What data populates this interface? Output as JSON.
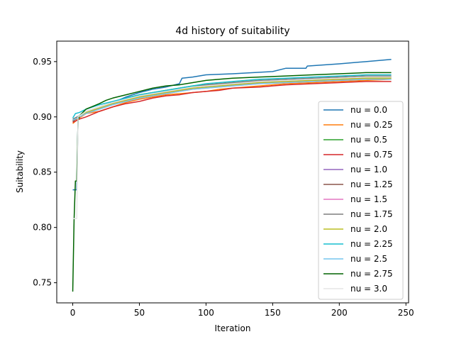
{
  "chart_data": {
    "type": "line",
    "title": "4d history of suitability",
    "xlabel": "Iteration",
    "ylabel": "Suitability",
    "xlim": [
      -12,
      252
    ],
    "ylim": [
      0.7318,
      0.9685
    ],
    "xticks": [
      0,
      50,
      100,
      150,
      200,
      250
    ],
    "yticks": [
      0.75,
      0.8,
      0.85,
      0.9,
      0.95
    ],
    "xtick_labels": [
      "0",
      "50",
      "100",
      "150",
      "200",
      "250"
    ],
    "ytick_labels": [
      "0.75",
      "0.80",
      "0.85",
      "0.90",
      "0.95"
    ],
    "grid": false,
    "legend_position": "right",
    "series": [
      {
        "name": "nu = 0.0",
        "color": "#1f77b4",
        "points": [
          [
            0,
            0.834
          ],
          [
            3,
            0.834
          ],
          [
            4,
            0.899
          ],
          [
            10,
            0.903
          ],
          [
            20,
            0.909
          ],
          [
            30,
            0.913
          ],
          [
            40,
            0.918
          ],
          [
            50,
            0.922
          ],
          [
            60,
            0.925
          ],
          [
            70,
            0.927
          ],
          [
            80,
            0.93
          ],
          [
            82,
            0.935
          ],
          [
            90,
            0.936
          ],
          [
            100,
            0.938
          ],
          [
            120,
            0.939
          ],
          [
            150,
            0.941
          ],
          [
            160,
            0.944
          ],
          [
            175,
            0.944
          ],
          [
            176,
            0.946
          ],
          [
            200,
            0.948
          ],
          [
            220,
            0.95
          ],
          [
            239,
            0.952
          ]
        ]
      },
      {
        "name": "nu = 0.25",
        "color": "#ff7f0e",
        "points": [
          [
            0,
            0.894
          ],
          [
            5,
            0.899
          ],
          [
            10,
            0.903
          ],
          [
            20,
            0.905
          ],
          [
            30,
            0.909
          ],
          [
            40,
            0.913
          ],
          [
            50,
            0.916
          ],
          [
            60,
            0.918
          ],
          [
            70,
            0.92
          ],
          [
            80,
            0.921
          ],
          [
            90,
            0.922
          ],
          [
            100,
            0.923
          ],
          [
            110,
            0.925
          ],
          [
            120,
            0.926
          ],
          [
            140,
            0.928
          ],
          [
            160,
            0.93
          ],
          [
            180,
            0.931
          ],
          [
            200,
            0.932
          ],
          [
            220,
            0.933
          ],
          [
            239,
            0.934
          ]
        ]
      },
      {
        "name": "nu = 0.5",
        "color": "#2ca02c",
        "points": [
          [
            0,
            0.896
          ],
          [
            5,
            0.901
          ],
          [
            10,
            0.905
          ],
          [
            20,
            0.909
          ],
          [
            30,
            0.913
          ],
          [
            40,
            0.917
          ],
          [
            50,
            0.92
          ],
          [
            60,
            0.922
          ],
          [
            70,
            0.924
          ],
          [
            80,
            0.926
          ],
          [
            90,
            0.928
          ],
          [
            100,
            0.929
          ],
          [
            120,
            0.931
          ],
          [
            140,
            0.932
          ],
          [
            160,
            0.933
          ],
          [
            180,
            0.934
          ],
          [
            200,
            0.935
          ],
          [
            220,
            0.935
          ],
          [
            239,
            0.936
          ]
        ]
      },
      {
        "name": "nu = 0.75",
        "color": "#d62728",
        "points": [
          [
            0,
            0.895
          ],
          [
            5,
            0.898
          ],
          [
            10,
            0.9
          ],
          [
            20,
            0.905
          ],
          [
            30,
            0.909
          ],
          [
            40,
            0.912
          ],
          [
            50,
            0.914
          ],
          [
            60,
            0.917
          ],
          [
            70,
            0.919
          ],
          [
            80,
            0.92
          ],
          [
            90,
            0.922
          ],
          [
            100,
            0.923
          ],
          [
            110,
            0.924
          ],
          [
            120,
            0.926
          ],
          [
            140,
            0.927
          ],
          [
            160,
            0.929
          ],
          [
            180,
            0.93
          ],
          [
            200,
            0.931
          ],
          [
            220,
            0.932
          ],
          [
            239,
            0.932
          ]
        ]
      },
      {
        "name": "nu = 1.0",
        "color": "#9467bd",
        "points": [
          [
            0,
            0.897
          ],
          [
            5,
            0.901
          ],
          [
            10,
            0.904
          ],
          [
            20,
            0.908
          ],
          [
            30,
            0.912
          ],
          [
            40,
            0.915
          ],
          [
            50,
            0.918
          ],
          [
            60,
            0.92
          ],
          [
            70,
            0.922
          ],
          [
            80,
            0.924
          ],
          [
            90,
            0.925
          ],
          [
            100,
            0.927
          ],
          [
            120,
            0.929
          ],
          [
            140,
            0.931
          ],
          [
            160,
            0.932
          ],
          [
            180,
            0.933
          ],
          [
            200,
            0.934
          ],
          [
            220,
            0.934
          ],
          [
            239,
            0.935
          ]
        ]
      },
      {
        "name": "nu = 1.25",
        "color": "#8c564b",
        "points": [
          [
            0,
            0.896
          ],
          [
            5,
            0.9
          ],
          [
            10,
            0.904
          ],
          [
            20,
            0.909
          ],
          [
            30,
            0.913
          ],
          [
            40,
            0.916
          ],
          [
            50,
            0.919
          ],
          [
            60,
            0.921
          ],
          [
            70,
            0.923
          ],
          [
            80,
            0.925
          ],
          [
            90,
            0.927
          ],
          [
            100,
            0.928
          ],
          [
            120,
            0.93
          ],
          [
            140,
            0.932
          ],
          [
            160,
            0.933
          ],
          [
            180,
            0.934
          ],
          [
            200,
            0.935
          ],
          [
            220,
            0.936
          ],
          [
            239,
            0.936
          ]
        ]
      },
      {
        "name": "nu = 1.5",
        "color": "#e377c2",
        "points": [
          [
            0,
            0.897
          ],
          [
            5,
            0.9
          ],
          [
            10,
            0.903
          ],
          [
            20,
            0.907
          ],
          [
            30,
            0.911
          ],
          [
            40,
            0.914
          ],
          [
            50,
            0.917
          ],
          [
            60,
            0.919
          ],
          [
            70,
            0.921
          ],
          [
            80,
            0.923
          ],
          [
            90,
            0.925
          ],
          [
            100,
            0.926
          ],
          [
            120,
            0.928
          ],
          [
            140,
            0.93
          ],
          [
            160,
            0.931
          ],
          [
            180,
            0.932
          ],
          [
            200,
            0.933
          ],
          [
            220,
            0.934
          ],
          [
            239,
            0.934
          ]
        ]
      },
      {
        "name": "nu = 1.75",
        "color": "#7f7f7f",
        "points": [
          [
            0,
            0.898
          ],
          [
            5,
            0.901
          ],
          [
            10,
            0.905
          ],
          [
            20,
            0.909
          ],
          [
            30,
            0.913
          ],
          [
            40,
            0.916
          ],
          [
            50,
            0.919
          ],
          [
            60,
            0.921
          ],
          [
            70,
            0.923
          ],
          [
            80,
            0.925
          ],
          [
            90,
            0.927
          ],
          [
            100,
            0.929
          ],
          [
            120,
            0.931
          ],
          [
            140,
            0.933
          ],
          [
            160,
            0.934
          ],
          [
            180,
            0.935
          ],
          [
            200,
            0.936
          ],
          [
            220,
            0.937
          ],
          [
            239,
            0.937
          ]
        ]
      },
      {
        "name": "nu = 2.0",
        "color": "#bcbd22",
        "points": [
          [
            0,
            0.897
          ],
          [
            5,
            0.9
          ],
          [
            10,
            0.904
          ],
          [
            20,
            0.908
          ],
          [
            30,
            0.912
          ],
          [
            40,
            0.915
          ],
          [
            50,
            0.918
          ],
          [
            60,
            0.92
          ],
          [
            70,
            0.922
          ],
          [
            80,
            0.924
          ],
          [
            90,
            0.926
          ],
          [
            100,
            0.927
          ],
          [
            120,
            0.929
          ],
          [
            140,
            0.931
          ],
          [
            160,
            0.932
          ],
          [
            180,
            0.933
          ],
          [
            200,
            0.934
          ],
          [
            220,
            0.935
          ],
          [
            239,
            0.935
          ]
        ]
      },
      {
        "name": "nu = 2.25",
        "color": "#17becf",
        "points": [
          [
            0,
            0.899
          ],
          [
            2,
            0.903
          ],
          [
            5,
            0.904
          ],
          [
            10,
            0.907
          ],
          [
            20,
            0.911
          ],
          [
            30,
            0.914
          ],
          [
            40,
            0.917
          ],
          [
            50,
            0.92
          ],
          [
            60,
            0.922
          ],
          [
            70,
            0.924
          ],
          [
            80,
            0.926
          ],
          [
            90,
            0.928
          ],
          [
            100,
            0.93
          ],
          [
            120,
            0.932
          ],
          [
            140,
            0.934
          ],
          [
            160,
            0.935
          ],
          [
            180,
            0.936
          ],
          [
            200,
            0.937
          ],
          [
            220,
            0.938
          ],
          [
            239,
            0.938
          ]
        ]
      },
      {
        "name": "nu = 2.5",
        "color": "#75c6ee",
        "points": [
          [
            0,
            0.897
          ],
          [
            5,
            0.9
          ],
          [
            10,
            0.903
          ],
          [
            20,
            0.907
          ],
          [
            30,
            0.911
          ],
          [
            40,
            0.914
          ],
          [
            50,
            0.917
          ],
          [
            60,
            0.919
          ],
          [
            70,
            0.921
          ],
          [
            80,
            0.923
          ],
          [
            90,
            0.925
          ],
          [
            100,
            0.926
          ],
          [
            120,
            0.928
          ],
          [
            140,
            0.93
          ],
          [
            160,
            0.931
          ],
          [
            180,
            0.932
          ],
          [
            200,
            0.933
          ],
          [
            220,
            0.934
          ],
          [
            239,
            0.934
          ]
        ]
      },
      {
        "name": "nu = 2.75",
        "color": "#006400",
        "points": [
          [
            0,
            0.742
          ],
          [
            1,
            0.807
          ],
          [
            2,
            0.842
          ],
          [
            3,
            0.842
          ],
          [
            4,
            0.897
          ],
          [
            5,
            0.901
          ],
          [
            10,
            0.907
          ],
          [
            20,
            0.912
          ],
          [
            25,
            0.915
          ],
          [
            30,
            0.917
          ],
          [
            40,
            0.92
          ],
          [
            50,
            0.923
          ],
          [
            60,
            0.926
          ],
          [
            70,
            0.928
          ],
          [
            80,
            0.929
          ],
          [
            90,
            0.931
          ],
          [
            100,
            0.933
          ],
          [
            110,
            0.934
          ],
          [
            120,
            0.935
          ],
          [
            140,
            0.936
          ],
          [
            160,
            0.937
          ],
          [
            180,
            0.938
          ],
          [
            200,
            0.939
          ],
          [
            220,
            0.94
          ],
          [
            239,
            0.94
          ]
        ]
      },
      {
        "name": "nu = 3.0",
        "color": "#e6e6e6",
        "points": [
          [
            0,
            0.808
          ],
          [
            3,
            0.808
          ],
          [
            4,
            0.9
          ],
          [
            10,
            0.905
          ],
          [
            20,
            0.909
          ],
          [
            30,
            0.913
          ],
          [
            40,
            0.916
          ],
          [
            50,
            0.919
          ],
          [
            60,
            0.921
          ],
          [
            70,
            0.923
          ],
          [
            80,
            0.925
          ],
          [
            90,
            0.927
          ],
          [
            100,
            0.928
          ],
          [
            120,
            0.93
          ],
          [
            140,
            0.932
          ],
          [
            160,
            0.933
          ],
          [
            180,
            0.934
          ],
          [
            200,
            0.935
          ],
          [
            220,
            0.936
          ],
          [
            239,
            0.936
          ]
        ]
      }
    ]
  }
}
